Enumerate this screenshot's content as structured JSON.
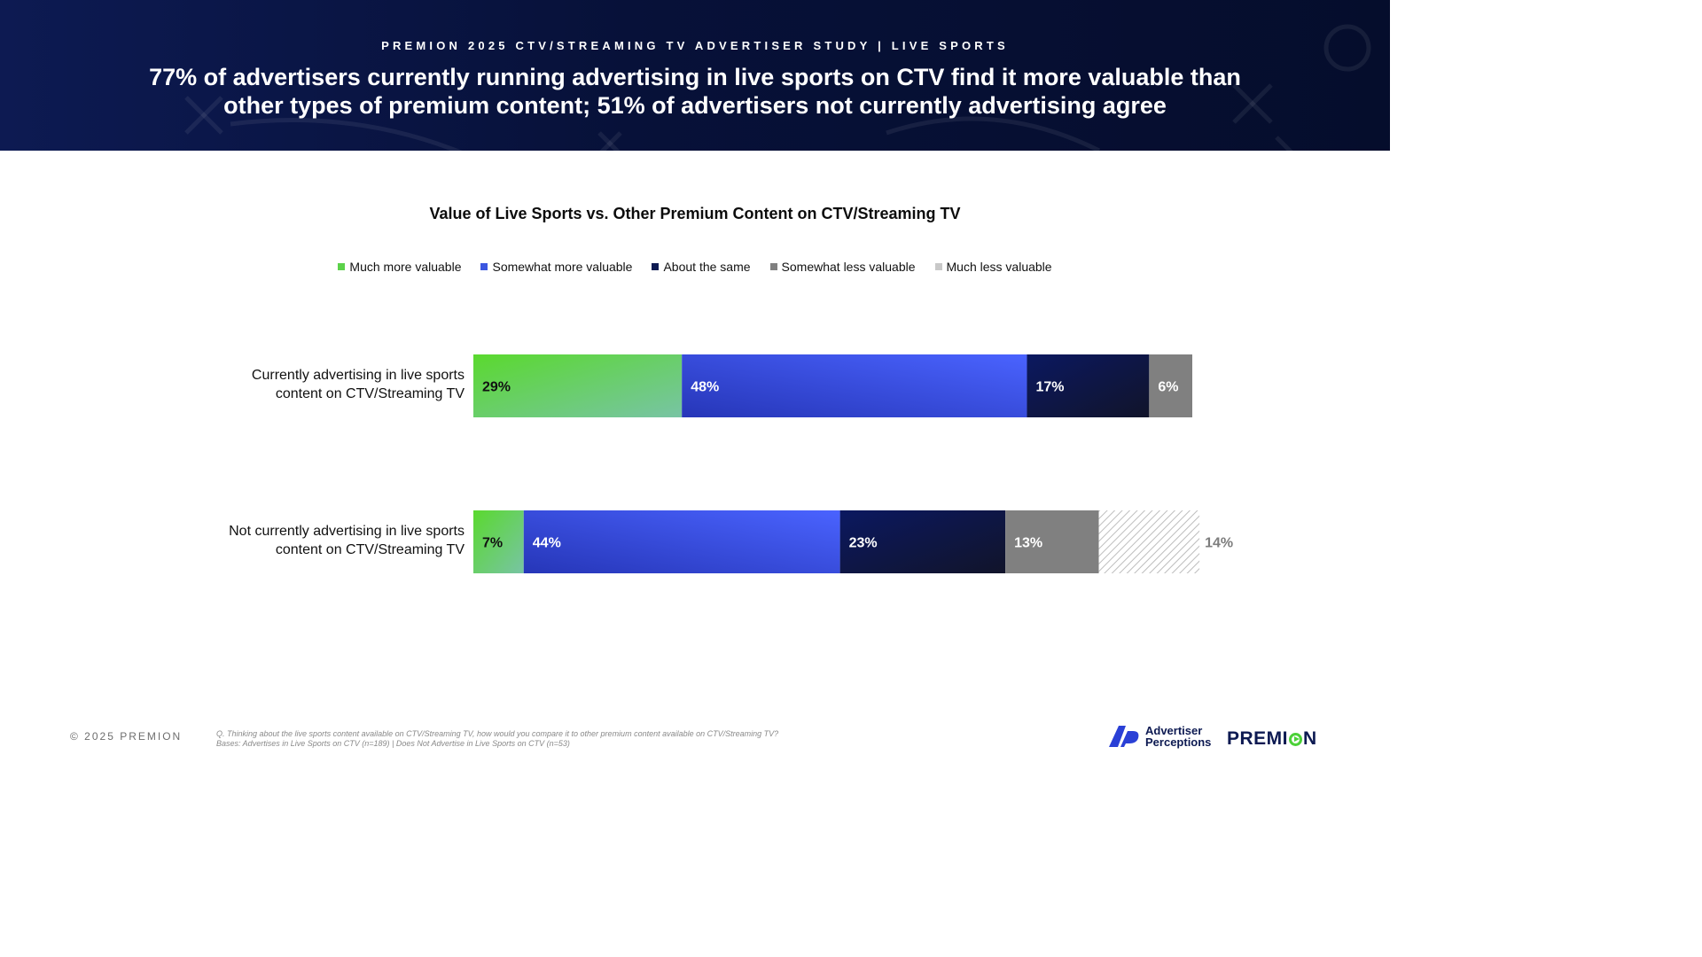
{
  "header": {
    "eyebrow": "PREMION 2025 CTV/STREAMING TV ADVERTISER STUDY | LIVE SPORTS",
    "headline_line1": "77% of advertisers currently running advertising in live sports on CTV find it more valuable than",
    "headline_line2": "other types of premium content; 51% of advertisers not currently advertising agree"
  },
  "chart_data": {
    "type": "bar",
    "orientation": "horizontal",
    "stacked": true,
    "title": "Value of Live Sports vs. Other Premium Content on CTV/Streaming TV",
    "xlim": [
      0,
      100
    ],
    "grid": false,
    "legend_position": "top-center",
    "categories": [
      [
        "Currently advertising in live sports",
        "content on CTV/Streaming TV"
      ],
      [
        "Not currently advertising in live sports",
        "content on CTV/Streaming TV"
      ]
    ],
    "series": [
      {
        "name": "Much more valuable",
        "color": "#5cd24a",
        "values": [
          29,
          7
        ],
        "labels": [
          "29%",
          "7%"
        ]
      },
      {
        "name": "Somewhat more valuable",
        "color": "#3b56e0",
        "values": [
          48,
          44
        ],
        "labels": [
          "48%",
          "44%"
        ]
      },
      {
        "name": "About the same",
        "color": "#0d1a52",
        "values": [
          17,
          23
        ],
        "labels": [
          "17%",
          "23%"
        ]
      },
      {
        "name": "Somewhat less valuable",
        "color": "#808080",
        "values": [
          6,
          13
        ],
        "labels": [
          "6%",
          "13%"
        ]
      },
      {
        "name": "Much less valuable",
        "color": "#c8c8c8",
        "values": [
          0,
          14
        ],
        "labels": [
          "",
          "14%"
        ]
      }
    ]
  },
  "footer": {
    "copyright": "© 2025 PREMION",
    "question": "Q. Thinking about the live sports content available on CTV/Streaming TV, how would you compare it to other premium content available on CTV/Streaming TV?",
    "bases": "Bases: Advertises in Live Sports on CTV (n=189) | Does Not Advertise in Live Sports on CTV (n=53)",
    "logo_ap_line1": "Advertiser",
    "logo_ap_line2": "Perceptions",
    "logo_premion_a": "PREMI",
    "logo_premion_b": "N"
  }
}
